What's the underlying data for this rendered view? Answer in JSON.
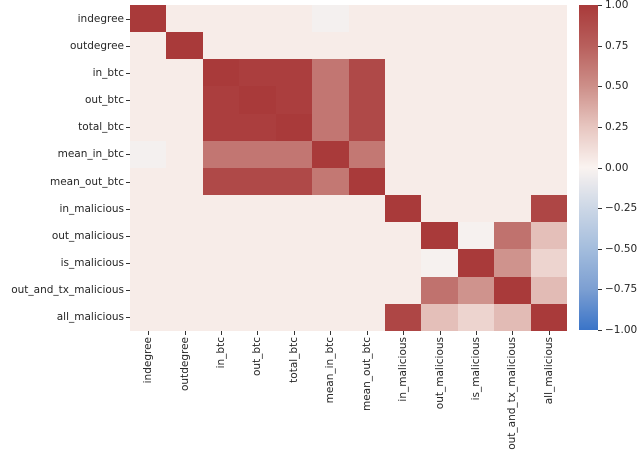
{
  "figure": {
    "background_color": "#ffffff",
    "plot_background_color": "#f8f1ee",
    "tick_color": "#333333",
    "label_color": "#262626"
  },
  "chart_data": {
    "type": "heatmap",
    "title": "",
    "xlabel": "",
    "ylabel": "",
    "description": "Feature correlation matrix heatmap with diverging red-white-blue colormap and vertical colorbar on the right",
    "labels": [
      "indegree",
      "outdegree",
      "in_btc",
      "out_btc",
      "total_btc",
      "mean_in_btc",
      "mean_out_btc",
      "in_malicious",
      "out_malicious",
      "is_malicious",
      "out_and_tx_malicious",
      "all_malicious"
    ],
    "matrix": [
      [
        1.0,
        0.04,
        0.04,
        0.04,
        0.04,
        -0.03,
        0.04,
        0.04,
        0.04,
        0.04,
        0.04,
        0.04
      ],
      [
        0.04,
        1.0,
        0.04,
        0.04,
        0.04,
        0.04,
        0.04,
        0.04,
        0.04,
        0.04,
        0.04,
        0.04
      ],
      [
        0.04,
        0.04,
        1.0,
        0.97,
        0.97,
        0.63,
        0.9,
        0.04,
        0.04,
        0.04,
        0.04,
        0.04
      ],
      [
        0.04,
        0.04,
        0.97,
        1.0,
        0.97,
        0.63,
        0.9,
        0.04,
        0.04,
        0.04,
        0.04,
        0.04
      ],
      [
        0.04,
        0.04,
        0.97,
        0.97,
        1.0,
        0.63,
        0.9,
        0.04,
        0.04,
        0.04,
        0.04,
        0.04
      ],
      [
        -0.03,
        0.04,
        0.63,
        0.63,
        0.63,
        1.0,
        0.62,
        0.04,
        0.04,
        0.04,
        0.04,
        0.04
      ],
      [
        0.04,
        0.04,
        0.9,
        0.9,
        0.9,
        0.62,
        1.0,
        0.04,
        0.04,
        0.04,
        0.04,
        0.04
      ],
      [
        0.04,
        0.04,
        0.04,
        0.04,
        0.04,
        0.04,
        0.04,
        1.0,
        0.04,
        0.04,
        0.04,
        0.92
      ],
      [
        0.04,
        0.04,
        0.04,
        0.04,
        0.04,
        0.04,
        0.04,
        0.04,
        1.0,
        -0.02,
        0.65,
        0.28
      ],
      [
        0.04,
        0.04,
        0.04,
        0.04,
        0.04,
        0.04,
        0.04,
        0.04,
        -0.02,
        1.0,
        0.48,
        0.17
      ],
      [
        0.04,
        0.04,
        0.04,
        0.04,
        0.04,
        0.04,
        0.04,
        0.04,
        0.65,
        0.48,
        1.0,
        0.3
      ],
      [
        0.04,
        0.04,
        0.04,
        0.04,
        0.04,
        0.04,
        0.04,
        0.92,
        0.28,
        0.17,
        0.3,
        1.0
      ]
    ],
    "colormap": {
      "style": "diverging red-white-blue",
      "anchors": [
        [
          1.0,
          "#a93a3a"
        ],
        [
          0.75,
          "#b85f5c"
        ],
        [
          0.5,
          "#cd8f89"
        ],
        [
          0.25,
          "#e7c6c0"
        ],
        [
          0.0,
          "#faf3f0"
        ],
        [
          -0.25,
          "#ccd7e6"
        ],
        [
          -0.5,
          "#a4bddd"
        ],
        [
          -0.75,
          "#7c9fd2"
        ],
        [
          -1.0,
          "#3a74c8"
        ]
      ]
    },
    "colorbar": {
      "position": "right",
      "range": [
        -1,
        1
      ],
      "tick_values": [
        1.0,
        0.75,
        0.5,
        0.25,
        0.0,
        -0.25,
        -0.5,
        -0.75,
        -1.0
      ],
      "tick_labels": [
        "1.00",
        "0.75",
        "0.50",
        "0.25",
        "0.00",
        "−0.25",
        "−0.50",
        "−0.75",
        "−1.00"
      ]
    },
    "grid": false,
    "legend": false,
    "x_tick_rotation_deg": 90
  }
}
